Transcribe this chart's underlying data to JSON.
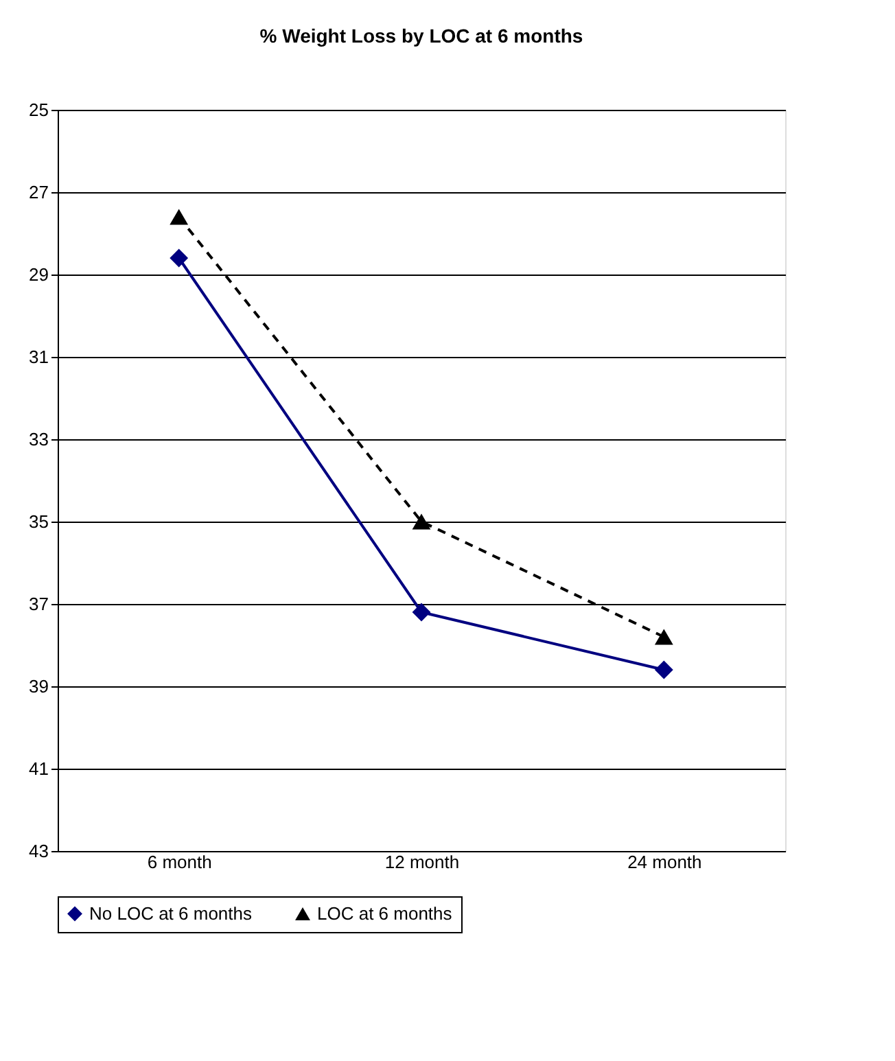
{
  "chart_data": {
    "type": "line",
    "title": "% Weight Loss by LOC at 6 months",
    "categories": [
      "6 month",
      "12 month",
      "24 month"
    ],
    "series": [
      {
        "name": "No LOC at 6 months",
        "color": "#000080",
        "values": [
          28.6,
          37.2,
          38.6
        ],
        "marker": "diamond",
        "line_style": "solid"
      },
      {
        "name": "LOC at 6 months",
        "color": "#000000",
        "values": [
          27.6,
          35.0,
          37.8
        ],
        "marker": "triangle",
        "line_style": "dashed"
      }
    ],
    "ylim": [
      43,
      25
    ],
    "yticks": [
      25,
      27,
      29,
      31,
      33,
      35,
      37,
      39,
      41,
      43
    ],
    "grid": "y",
    "legend": "bottom"
  }
}
